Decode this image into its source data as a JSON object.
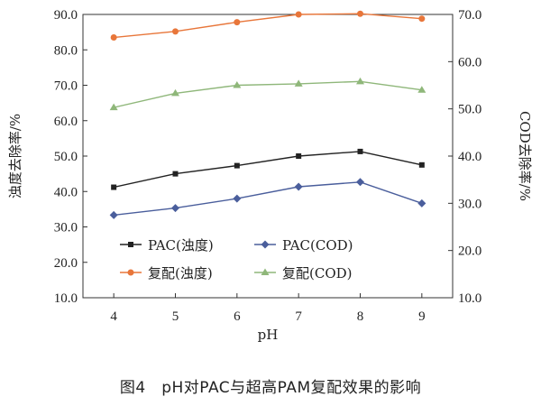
{
  "caption": "图4　pH对PAC与超高PAM复配效果的影响",
  "chart_data": {
    "type": "line",
    "xlabel": "pH",
    "ylabel_left": "浊度去除率/%",
    "ylabel_right": "COD去除率/%",
    "x": [
      4,
      5,
      6,
      7,
      8,
      9
    ],
    "xlim": [
      3.5,
      9.5
    ],
    "x_ticks": [
      "4",
      "5",
      "6",
      "7",
      "8",
      "9"
    ],
    "ylim_left": [
      10,
      90
    ],
    "y_ticks_left": [
      "10.0",
      "20.0",
      "30.0",
      "40.0",
      "50.0",
      "60.0",
      "70.0",
      "80.0",
      "90.0"
    ],
    "ylim_right": [
      10,
      70
    ],
    "y_ticks_right": [
      "10.0",
      "20.0",
      "30.0",
      "40.0",
      "50.0",
      "60.0",
      "70.0"
    ],
    "series": [
      {
        "name": "PAC(浊度)",
        "axis": "left",
        "color": "#222222",
        "marker": "square",
        "values": [
          41.2,
          45.0,
          47.3,
          50.0,
          51.3,
          47.5
        ]
      },
      {
        "name": "PAC(COD)",
        "axis": "right",
        "color": "#4a5e9c",
        "marker": "diamond",
        "values": [
          27.5,
          29.0,
          31.0,
          33.5,
          34.5,
          30.0
        ]
      },
      {
        "name": "复配(浊度)",
        "axis": "left",
        "color": "#e8763a",
        "marker": "circle",
        "values": [
          83.5,
          85.2,
          87.8,
          90.0,
          90.2,
          88.8
        ]
      },
      {
        "name": "复配(COD)",
        "axis": "right",
        "color": "#8fb77a",
        "marker": "triangle",
        "values": [
          50.3,
          53.3,
          55.0,
          55.3,
          55.8,
          54.0
        ]
      }
    ]
  }
}
